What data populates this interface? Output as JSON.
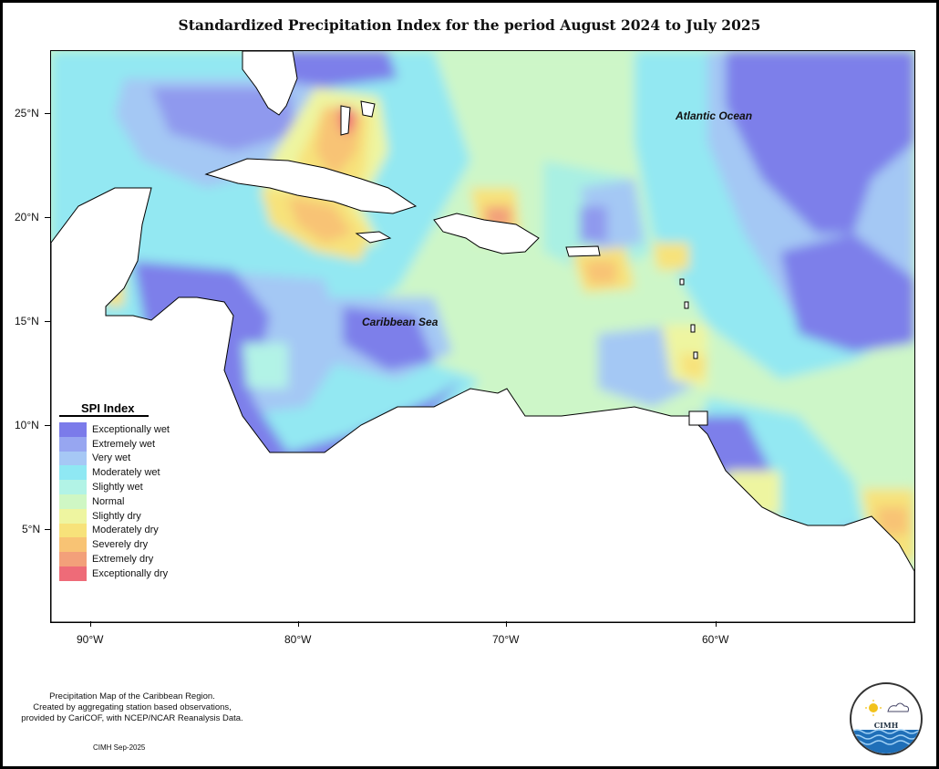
{
  "title": "Standardized Precipitation Index for the period August 2024 to July 2025",
  "map": {
    "ocean_labels": [
      "Atlantic Ocean",
      "Caribbean Sea"
    ],
    "y_ticks": [
      "25°N",
      "20°N",
      "15°N",
      "10°N",
      "5°N"
    ],
    "x_ticks": [
      "90°W",
      "80°W",
      "70°W",
      "60°W"
    ]
  },
  "legend": {
    "title": "SPI Index",
    "items": [
      {
        "label": "Exceptionally wet",
        "color": "#7b7bea"
      },
      {
        "label": "Extremely wet",
        "color": "#97a6f1"
      },
      {
        "label": "Very wet",
        "color": "#a6c8f5"
      },
      {
        "label": "Moderately wet",
        "color": "#8fe8f3"
      },
      {
        "label": "Slightly wet",
        "color": "#b2f3e6"
      },
      {
        "label": "Normal",
        "color": "#cff7c4"
      },
      {
        "label": "Slightly dry",
        "color": "#eef5a0"
      },
      {
        "label": "Moderately dry",
        "color": "#f7e27a"
      },
      {
        "label": "Severely dry",
        "color": "#f8c374"
      },
      {
        "label": "Extremely dry",
        "color": "#f3a07a"
      },
      {
        "label": "Exceptionally dry",
        "color": "#ee6b78"
      }
    ]
  },
  "footnote": {
    "line1": "Precipitation Map of the Caribbean Region.",
    "line2": "Created by aggregating station based observations,",
    "line3": "provided by CariCOF, with NCEP/NCAR Reanalysis Data."
  },
  "datestamp": "CIMH Sep-2025",
  "logo": {
    "abbrev": "CIMH"
  }
}
